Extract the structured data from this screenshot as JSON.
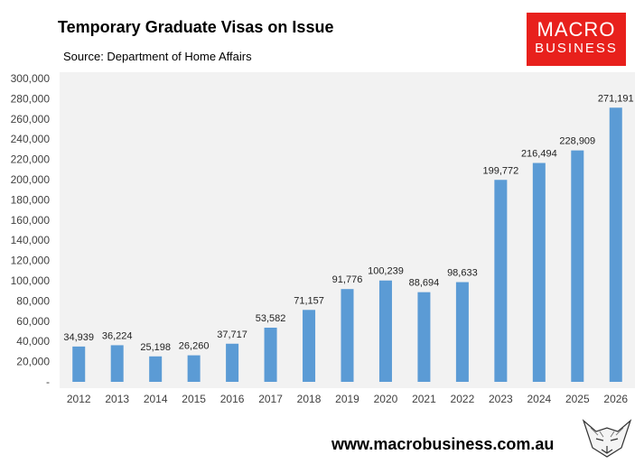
{
  "header": {
    "title": "Temporary Graduate Visas on Issue",
    "subtitle": "Source: Department of Home Affairs"
  },
  "logo": {
    "line1": "MACRO",
    "line2": "BUSINESS",
    "color": "#e8201c"
  },
  "footer": {
    "url": "www.macrobusiness.com.au",
    "icon": "fox-sketch-icon"
  },
  "chart_data": {
    "type": "bar",
    "categories": [
      "2012",
      "2013",
      "2014",
      "2015",
      "2016",
      "2017",
      "2018",
      "2019",
      "2020",
      "2021",
      "2022",
      "2023",
      "2024",
      "2025",
      "2026"
    ],
    "values": [
      34939,
      36224,
      25198,
      26260,
      37717,
      53582,
      71157,
      91776,
      100239,
      88694,
      98633,
      199772,
      216494,
      228909,
      271191
    ],
    "value_labels": [
      "34,939",
      "36,224",
      "25,198",
      "26,260",
      "37,717",
      "53,582",
      "71,157",
      "91,776",
      "100,239",
      "88,694",
      "98,633",
      "199,772",
      "216,494",
      "228,909",
      "271,191"
    ],
    "y_ticks": [
      "-",
      "20,000",
      "40,000",
      "60,000",
      "80,000",
      "100,000",
      "120,000",
      "140,000",
      "160,000",
      "180,000",
      "200,000",
      "220,000",
      "240,000",
      "260,000",
      "280,000",
      "300,000"
    ],
    "ylim": [
      0,
      300000
    ],
    "title": "Temporary Graduate Visas on Issue",
    "xlabel": "",
    "ylabel": "",
    "bar_color": "#5b9bd5",
    "plot_background": "#f2f2f2",
    "grid": false
  }
}
